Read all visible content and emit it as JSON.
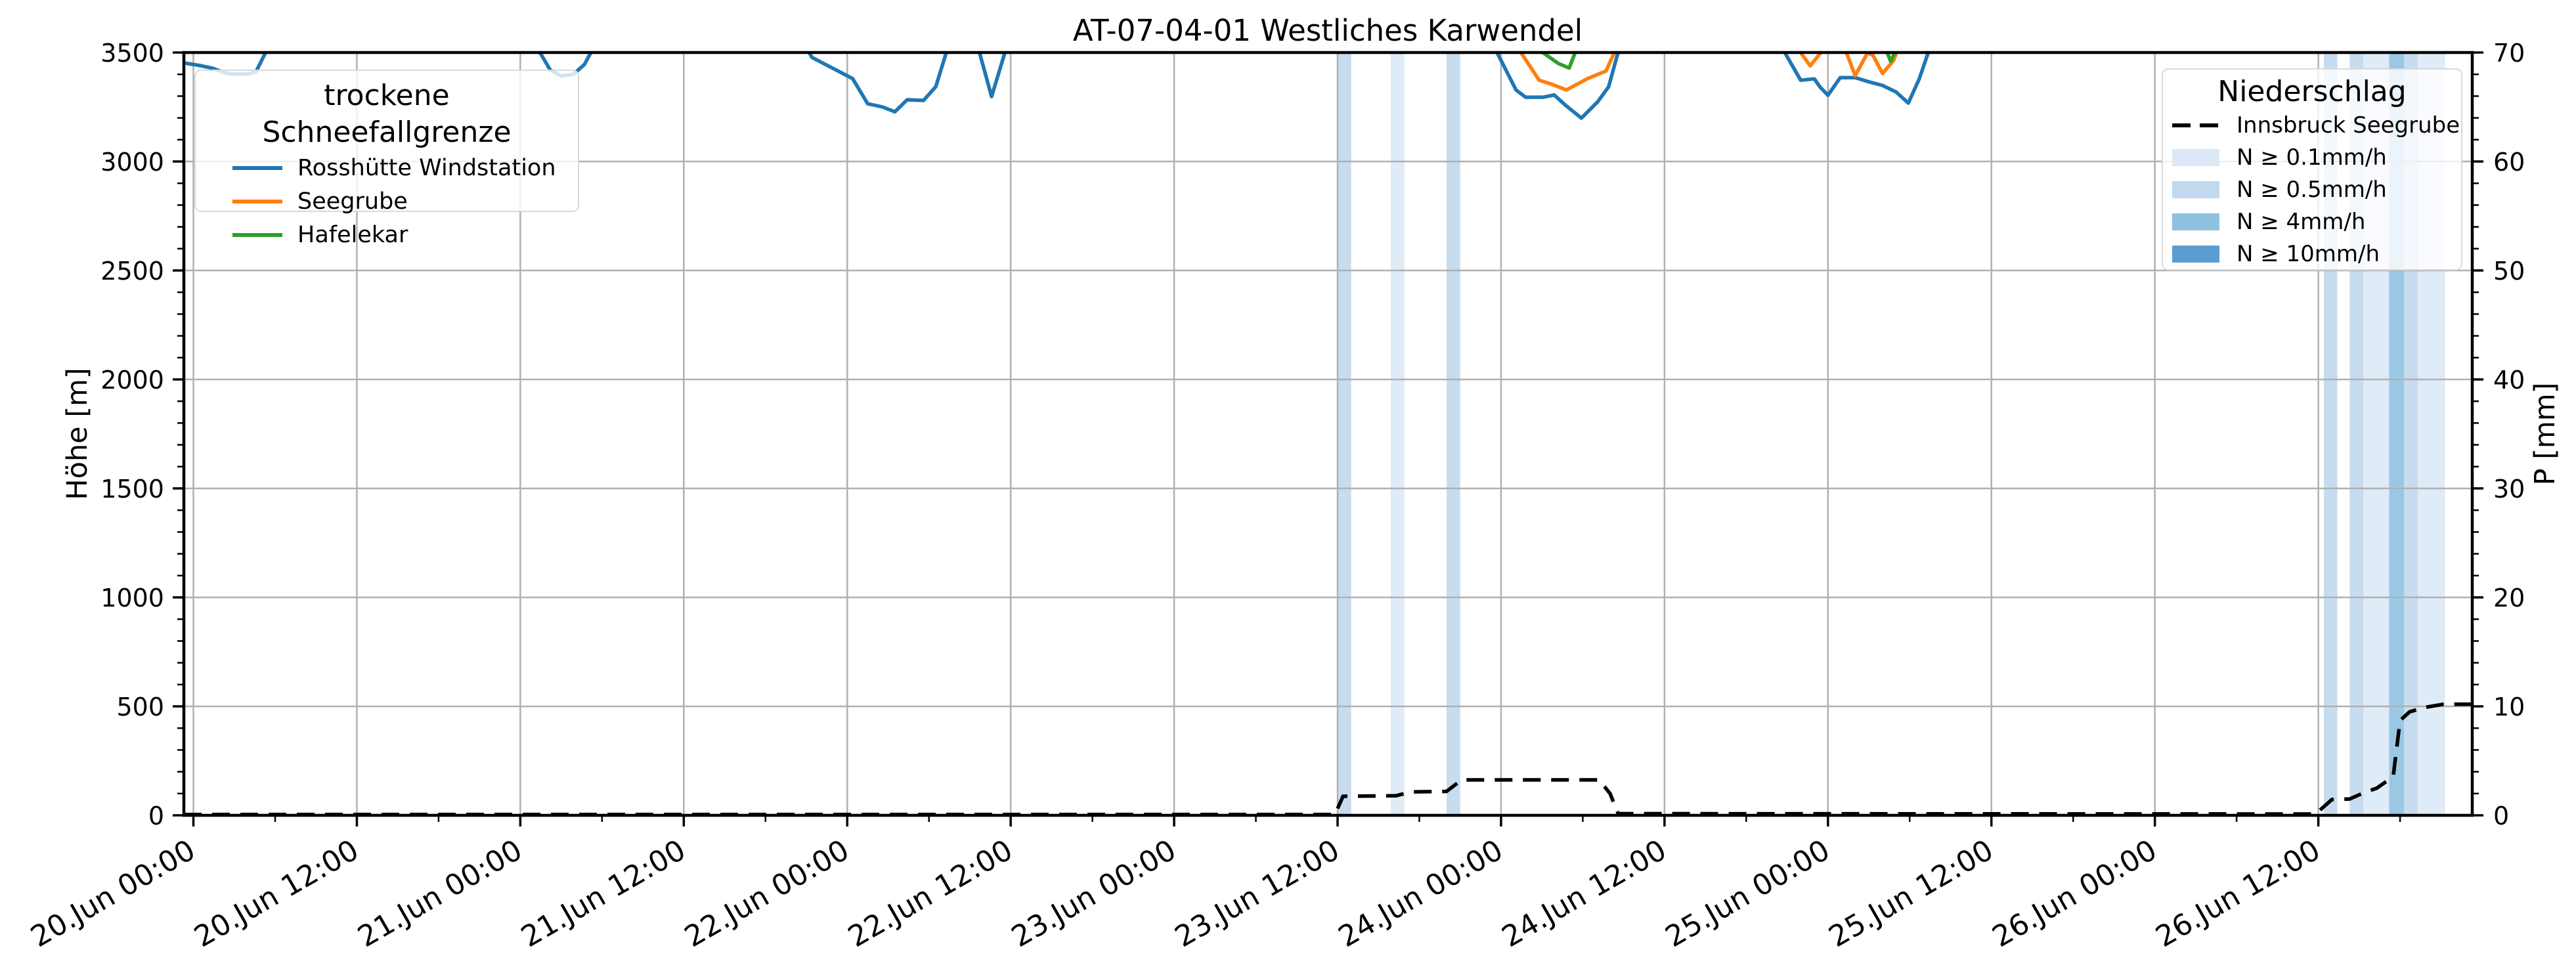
{
  "chart_data": {
    "type": "line",
    "title": "AT-07-04-01 Westliches Karwendel",
    "axes": {
      "x": {
        "min_hours": -0.7,
        "max_hours": 167.3,
        "epoch": "20.Jun 00:00",
        "major_step_h": 12,
        "minor_step_h": 6,
        "tick_labels": [
          "20.Jun 00:00",
          "20.Jun 12:00",
          "21.Jun 00:00",
          "21.Jun 12:00",
          "22.Jun 00:00",
          "22.Jun 12:00",
          "23.Jun 00:00",
          "23.Jun 12:00",
          "24.Jun 00:00",
          "24.Jun 12:00",
          "25.Jun 00:00",
          "25.Jun 12:00",
          "26.Jun 00:00",
          "26.Jun 12:00"
        ]
      },
      "y_left": {
        "label": "Höhe [m]",
        "min": 0,
        "max": 3500,
        "major_step": 500,
        "minor_step": 100,
        "tick_labels": [
          "0",
          "500",
          "1000",
          "1500",
          "2000",
          "2500",
          "3000",
          "3500"
        ]
      },
      "y_right": {
        "label": "P [mm]",
        "min": 0,
        "max": 70,
        "major_step": 10,
        "minor_step": 2,
        "tick_labels": [
          "0",
          "10",
          "20",
          "30",
          "40",
          "50",
          "60",
          "70"
        ]
      }
    },
    "grid": {
      "on": true,
      "color": "#b0b0b0"
    },
    "legends": {
      "snowline": {
        "title": "trockene Schneefallgrenze",
        "entries": [
          {
            "label": "Rosshütte Windstation",
            "color": "#1f77b4"
          },
          {
            "label": "Seegrube",
            "color": "#ff7f0e"
          },
          {
            "label": "Hafelekar",
            "color": "#2ca02c"
          }
        ]
      },
      "precip": {
        "title": "Niederschlag",
        "line_entry": {
          "label": "Innsbruck Seegrube",
          "color": "#000000",
          "style": "dashed"
        },
        "band_entries": [
          {
            "label": "N ≥ 0.1mm/h",
            "level": "0.1",
            "color": "#dbe9f6"
          },
          {
            "label": "N ≥ 0.5mm/h",
            "level": "0.5",
            "color": "#c1d8ed"
          },
          {
            "label": "N ≥ 4mm/h",
            "level": "4",
            "color": "#8fc2e1"
          },
          {
            "label": "N ≥ 10mm/h",
            "level": "10",
            "color": "#5b9dd1"
          }
        ]
      }
    },
    "snowline_series": [
      {
        "name": "Rosshütte Windstation",
        "color": "#1f77b4",
        "axis": "left",
        "unit": "m",
        "segments": [
          [
            [
              -0.7,
              3452
            ],
            [
              0.5,
              3440
            ],
            [
              1.4,
              3428
            ],
            [
              2.3,
              3407
            ],
            [
              2.8,
              3401
            ],
            [
              4.1,
              3402
            ],
            [
              4.6,
              3412
            ],
            [
              5.5,
              3525
            ]
          ],
          [
            [
              25.2,
              3525
            ],
            [
              26.2,
              3420
            ],
            [
              27.0,
              3392
            ],
            [
              27.9,
              3400
            ],
            [
              28.7,
              3445
            ],
            [
              29.4,
              3525
            ]
          ],
          [
            [
              45.0,
              3525
            ],
            [
              45.4,
              3478
            ],
            [
              48.4,
              3380
            ],
            [
              49.5,
              3265
            ],
            [
              50.6,
              3250
            ],
            [
              51.5,
              3228
            ],
            [
              52.4,
              3283
            ],
            [
              53.6,
              3280
            ],
            [
              54.5,
              3343
            ],
            [
              55.4,
              3525
            ]
          ],
          [
            [
              57.6,
              3525
            ],
            [
              58.6,
              3298
            ],
            [
              59.7,
              3525
            ]
          ],
          [
            [
              95.5,
              3525
            ],
            [
              97.1,
              3328
            ],
            [
              97.8,
              3295
            ],
            [
              99.1,
              3295
            ],
            [
              99.9,
              3305
            ],
            [
              100.7,
              3260
            ],
            [
              101.9,
              3199
            ],
            [
              103.1,
              3274
            ],
            [
              103.9,
              3343
            ],
            [
              104.7,
              3525
            ]
          ],
          [
            [
              116.6,
              3525
            ],
            [
              118.0,
              3373
            ],
            [
              119.0,
              3379
            ],
            [
              119.4,
              3343
            ],
            [
              120.0,
              3304
            ],
            [
              120.9,
              3385
            ],
            [
              122.0,
              3385
            ],
            [
              123.1,
              3364
            ],
            [
              124.0,
              3349
            ],
            [
              125.0,
              3319
            ],
            [
              125.9,
              3268
            ],
            [
              126.7,
              3379
            ],
            [
              127.5,
              3525
            ]
          ]
        ]
      },
      {
        "name": "Seegrube",
        "color": "#ff7f0e",
        "axis": "left",
        "unit": "m",
        "segments": [
          [
            [
              97.2,
              3525
            ],
            [
              98.8,
              3373
            ],
            [
              99.7,
              3355
            ],
            [
              100.8,
              3328
            ],
            [
              102.3,
              3379
            ],
            [
              103.7,
              3415
            ],
            [
              104.5,
              3525
            ]
          ],
          [
            [
              117.7,
              3525
            ],
            [
              118.7,
              3439
            ],
            [
              119.8,
              3525
            ]
          ],
          [
            [
              121.2,
              3525
            ],
            [
              122.0,
              3394
            ],
            [
              122.9,
              3498
            ],
            [
              123.3,
              3488
            ],
            [
              123.7,
              3440
            ],
            [
              124.0,
              3404
            ],
            [
              124.8,
              3462
            ],
            [
              125.2,
              3525
            ]
          ]
        ]
      },
      {
        "name": "Hafelekar",
        "color": "#2ca02c",
        "axis": "left",
        "unit": "m",
        "segments": [
          [
            [
              98.5,
              3525
            ],
            [
              100.2,
              3450
            ],
            [
              101.0,
              3429
            ],
            [
              101.6,
              3525
            ]
          ],
          [
            [
              124.2,
              3525
            ],
            [
              124.6,
              3460
            ],
            [
              125.1,
              3525
            ]
          ]
        ]
      }
    ],
    "precip_line": {
      "name": "Innsbruck Seegrube",
      "color": "#000000",
      "style": "dashed",
      "axis": "right",
      "unit": "mm",
      "points": [
        [
          -0.7,
          0.07
        ],
        [
          83.8,
          0.07
        ],
        [
          84.4,
          1.75
        ],
        [
          88.3,
          1.8
        ],
        [
          89.4,
          2.15
        ],
        [
          92.0,
          2.2
        ],
        [
          93.1,
          3.25
        ],
        [
          103.2,
          3.25
        ],
        [
          104.0,
          2.0
        ],
        [
          104.6,
          0.15
        ],
        [
          155.8,
          0.12
        ],
        [
          157.0,
          1.45
        ],
        [
          158.3,
          1.5
        ],
        [
          159.4,
          2.1
        ],
        [
          160.3,
          2.5
        ],
        [
          161.2,
          3.3
        ],
        [
          161.5,
          3.6
        ],
        [
          162.0,
          8.7
        ],
        [
          162.7,
          9.5
        ],
        [
          163.8,
          9.9
        ],
        [
          165.2,
          10.2
        ],
        [
          167.3,
          10.2
        ]
      ]
    },
    "precip_bands": [
      {
        "from": 84.0,
        "to": 85.0,
        "level": "0.5"
      },
      {
        "from": 87.9,
        "to": 88.9,
        "level": "0.1"
      },
      {
        "from": 92.0,
        "to": 93.0,
        "level": "0.5"
      },
      {
        "from": 156.4,
        "to": 157.4,
        "level": "0.5"
      },
      {
        "from": 158.3,
        "to": 159.3,
        "level": "0.5"
      },
      {
        "from": 159.3,
        "to": 161.2,
        "level": "0.1"
      },
      {
        "from": 161.2,
        "to": 162.3,
        "level": "4"
      },
      {
        "from": 162.3,
        "to": 163.3,
        "level": "0.5"
      },
      {
        "from": 163.3,
        "to": 165.3,
        "level": "0.1"
      }
    ]
  }
}
